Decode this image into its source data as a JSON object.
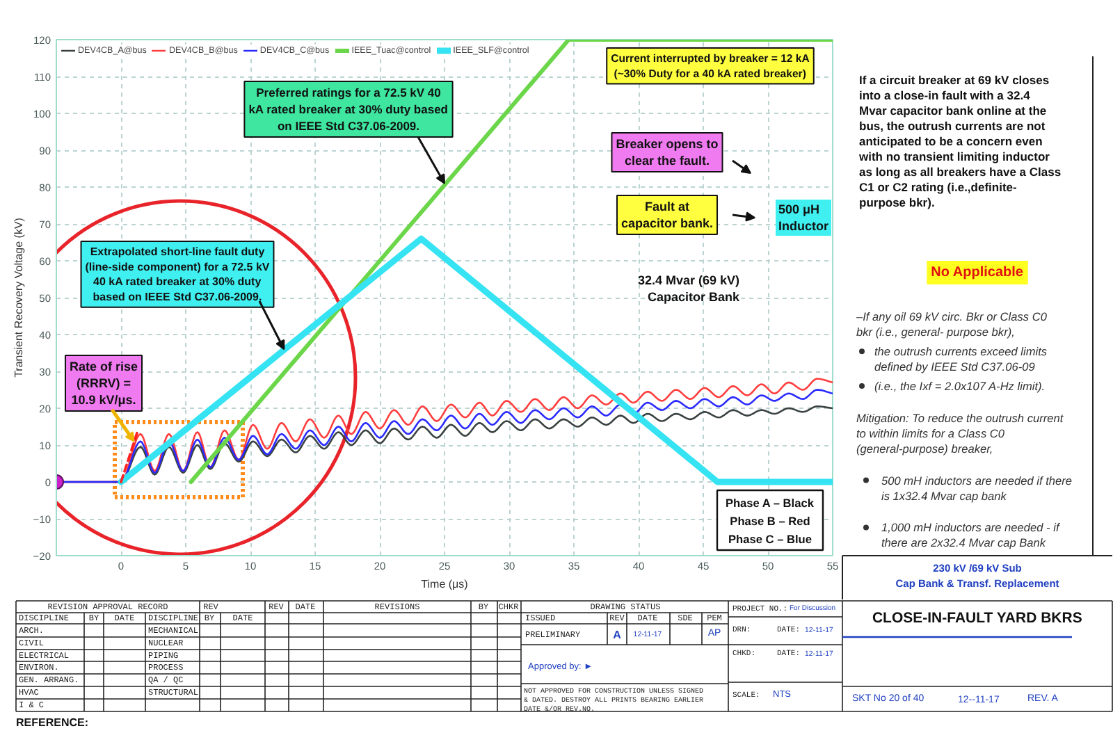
{
  "chart_data": {
    "type": "line",
    "xlabel": "Time (μs)",
    "ylabel": "Transient Recovery Voltage (kV)",
    "xlim": [
      -5,
      55
    ],
    "xticks": [
      0,
      5,
      10,
      15,
      20,
      25,
      30,
      35,
      40,
      45,
      50,
      55
    ],
    "ylim": [
      -20,
      120
    ],
    "yticks": [
      -20,
      -10,
      0,
      10,
      20,
      30,
      40,
      50,
      60,
      70,
      80,
      90,
      100,
      110,
      120
    ],
    "grid": true,
    "legend": "top left",
    "x": [
      -5,
      0,
      1.5,
      2.6,
      3.7,
      4.8,
      5.9,
      6.9,
      8.0,
      9.1,
      10.2,
      11.3,
      12.4,
      13.5,
      14.6,
      15.7,
      16.8,
      17.8,
      18.9,
      20.0,
      21.1,
      22.2,
      23.3,
      24.4,
      25.5,
      26.6,
      27.7,
      28.7,
      29.8,
      30.9,
      32.0,
      33.1,
      34.2,
      35.3,
      36.4,
      37.5,
      38.6,
      39.6,
      40.7,
      41.8,
      42.9,
      44.0,
      45.1,
      46.2,
      47.3,
      48.4,
      49.5,
      50.5,
      51.6,
      52.7,
      53.8,
      55
    ],
    "series": [
      {
        "name": "DEV4CB_A@bus",
        "color": "#3a4242",
        "values": [
          0,
          0,
          9.5,
          2,
          9.5,
          2.5,
          10,
          3.5,
          10.5,
          5.5,
          11,
          7,
          11.5,
          8,
          12.5,
          9,
          13.5,
          10,
          14,
          10.5,
          14.5,
          11.5,
          15,
          12,
          15.5,
          12.5,
          16,
          13.5,
          16.5,
          14,
          17,
          14.5,
          17,
          15,
          17.5,
          15.5,
          18,
          16,
          18.5,
          16.5,
          18.5,
          17,
          19,
          17.5,
          19.5,
          18,
          19.5,
          18.5,
          20,
          19,
          20.5,
          20
        ]
      },
      {
        "name": "DEV4CB_B@bus",
        "color": "#ff3d3d",
        "values": [
          0,
          0,
          13,
          3,
          13,
          3,
          13.5,
          4,
          14,
          6,
          15.5,
          9,
          16,
          11,
          17,
          12,
          18,
          13,
          19,
          14.5,
          19.5,
          15.5,
          20.5,
          16.5,
          21,
          17.5,
          21.5,
          18,
          22,
          19,
          22.5,
          19.5,
          23,
          20,
          23.5,
          21,
          24,
          21.5,
          24.5,
          22,
          25,
          22.5,
          25.5,
          23,
          26,
          23.5,
          26.5,
          24,
          27,
          25,
          28,
          27
        ]
      },
      {
        "name": "DEV4CB_C@bus",
        "color": "#2b2bff",
        "values": [
          0,
          0,
          11,
          2.5,
          11,
          3,
          11.5,
          4,
          12,
          6,
          12.5,
          7.5,
          13,
          9,
          14,
          10,
          15,
          11,
          16,
          12,
          16.5,
          13,
          17,
          14,
          18,
          14.5,
          18.5,
          15.5,
          19,
          16,
          19.5,
          17,
          20,
          17.5,
          20.5,
          18,
          21,
          18.5,
          21.5,
          19.5,
          22,
          20,
          22.5,
          20.5,
          23,
          21,
          23.5,
          22,
          24,
          22.5,
          25,
          24
        ]
      },
      {
        "name": "IEEE_Tuac@control",
        "color": "#6cd64a",
        "x": [
          5.4,
          34.6,
          55
        ],
        "values": [
          0,
          120,
          120
        ]
      },
      {
        "name": "IEEE_SLF@control",
        "color": "#35e3f2",
        "x": [
          0,
          23.2,
          46.1,
          55
        ],
        "values": [
          0,
          66,
          0,
          0
        ]
      },
      {
        "color": "#ff2020",
        "line_style": "dashed",
        "x": [
          0,
          1.3
        ],
        "values": [
          0,
          14
        ]
      },
      {
        "type": "scatter",
        "marker": "circle",
        "color": "#cc22cc",
        "x": [
          -5
        ],
        "values": [
          0
        ]
      }
    ],
    "annotations": [
      {
        "text": "Preferred ratings for a 72.5 kV 40 kA rated breaker at 30% duty based on IEEE Std C37.06-2009.",
        "x": 25,
        "y": 81
      },
      {
        "text": "Extrapolated short-line fault duty (line-side component) for a 72.5 kV 40 kA rated breaker at 30% duty based on IEEE Std C37.06-2009.",
        "x": 12.6,
        "y": 36
      },
      {
        "text": "Rate of rise (RRRV) = 10.9 kV/μs.",
        "x": 1,
        "y": 11
      },
      "Current interrupted by breaker = 12 kA (~30% Duty for a 40 kA rated breaker)",
      "Breaker opens to clear the fault.",
      "Fault at capacitor bank.",
      "500 μH Inductor",
      "32.4 Mvar (69 kV) Capacitor Bank",
      "Phase A – Black",
      "Phase B – Red",
      "Phase C – Blue",
      "If a circuit breaker at 69 kV closes into a close-in fault with a 32.4 Mvar capacitor bank online at the bus, the outrush currents are not anticipated to be a concern even with no transient limiting inductor as long as all breakers have a Class C1 or C2 rating (i.e.,definite- purpose bkr).",
      "No Applicable",
      "–If any oil 69 kV circ. Bkr or Class C0 bkr (i.e., general- purpose bkr),",
      "the outrush currents exceed limits defined by IEEE Std C37.06-09",
      "(i.e., the Ixf = 2.0x107 A-Hz limit).",
      "Mitigation: To reduce the outrush current to within limits for a Class C0 (general-purpose) breaker,",
      "500 mH inductors are needed if there is 1x32.4 Mvar cap bank",
      "1,000 mH inductors are needed - if there are 2x32.4 Mvar cap Bank",
      "230 kV /69 kV Sub",
      "Cap Bank & Transf. Replacement",
      "CLOSE-IN-FAULT YARD BKRS",
      "SKT No 20 of 40",
      "12--11-17",
      "REV. A",
      "REVISION APPROVAL RECORD",
      "REV",
      "REV",
      "DATE",
      "REVISIONS",
      "BY",
      "CHKR",
      "DRAWING STATUS",
      "PROJECT NO.:",
      "For Discussion",
      "DISCIPLINE",
      "BY",
      "DATE",
      "DISCIPLINE",
      "BY",
      "DATE",
      "ISSUED",
      "REV",
      "DATE",
      "SDE",
      "PEM",
      "ARCH.",
      "CIVIL",
      "ELECTRICAL",
      "ENVIRON.",
      "GEN. ARRANG.",
      "HVAC",
      "I & C",
      "MECHANICAL",
      "NUCLEAR",
      "PIPING",
      "PROCESS",
      "QA / QC",
      "STRUCTURAL",
      "PRELIMINARY",
      "A",
      "12-11-17",
      "AP",
      "Approved by: ►",
      "NOT APPROVED FOR CONSTRUCTION UNLESS SIGNED & DATED. DESTROY ALL PRINTS BEARING EARLIER DATE &/OR REV.NO.",
      "DRN:",
      "DATE:",
      "12-11-17",
      "CHKD:",
      "DATE:",
      "12-11-17",
      "SCALE:",
      "NTS",
      "REFERENCE:"
    ]
  }
}
